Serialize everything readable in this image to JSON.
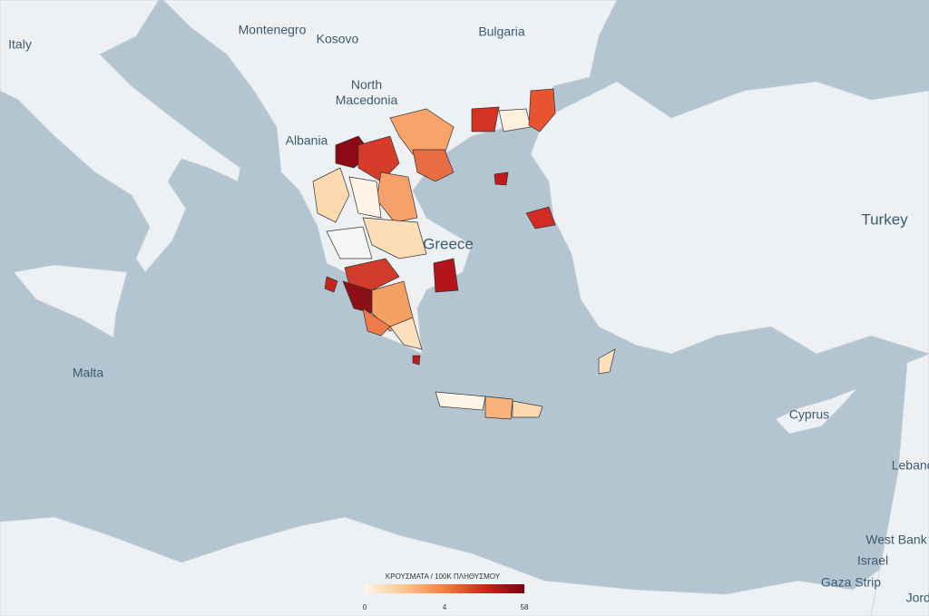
{
  "labels": {
    "italy": "Italy",
    "montenegro": "Montenegro",
    "kosovo": "Kosovo",
    "bulgaria": "Bulgaria",
    "north_macedonia": [
      "North",
      "Macedonia"
    ],
    "albania": "Albania",
    "greece": "Greece",
    "turkey": "Turkey",
    "malta": "Malta",
    "cyprus": "Cyprus",
    "lebanon": "Lebanon",
    "west_bank": "West Bank",
    "israel": "Israel",
    "gaza_strip": "Gaza Strip",
    "jordan": "Jordan"
  },
  "legend": {
    "title": "ΚΡΟΥΣΜΑΤΑ / 100K ΠΛΗΘΥΣΜΟΥ",
    "ticks": [
      0,
      4,
      58
    ],
    "colors": [
      "#fff5e6",
      "#fdc48e",
      "#f0803c",
      "#c9281c",
      "#7a0010"
    ]
  }
}
